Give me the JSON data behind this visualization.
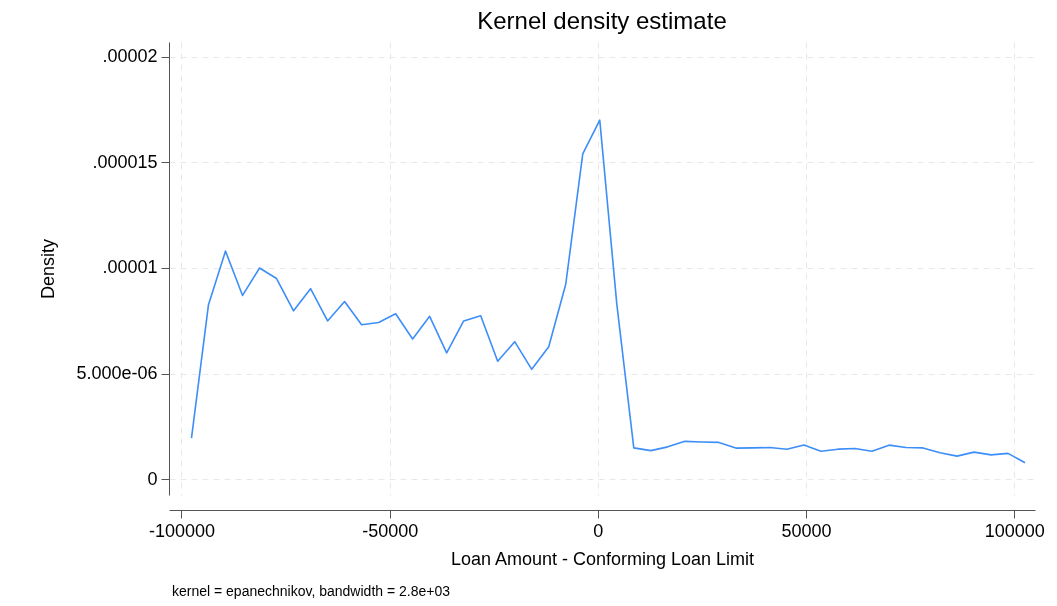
{
  "chart_data": {
    "type": "line",
    "title": "Kernel density estimate",
    "xlabel": "Loan Amount - Conforming Loan Limit",
    "ylabel": "Density",
    "annotations": [
      "kernel = epanechnikov, bandwidth =  2.8e+03"
    ],
    "x": [
      -97600,
      -93514,
      -89428,
      -85342,
      -81256,
      -77170,
      -73084,
      -68998,
      -64912,
      -60826,
      -56740,
      -52654,
      -48568,
      -44482,
      -40396,
      -36310,
      -32224,
      -28138,
      -24052,
      -19966,
      -15880,
      -11794,
      -7708,
      -3622,
      464,
      4550,
      8636,
      12722,
      16808,
      20894,
      24980,
      29066,
      33152,
      37238,
      41324,
      45410,
      49496,
      53582,
      57668,
      61754,
      65840,
      69926,
      74012,
      78098,
      82184,
      86270,
      90356,
      94442,
      98528,
      102614
    ],
    "series": [
      {
        "color": "#3d8ef8",
        "values": [
          1.94e-06,
          8.26e-06,
          1.08e-05,
          8.7e-06,
          1e-05,
          9.5e-06,
          7.97e-06,
          9.02e-06,
          7.49e-06,
          8.41e-06,
          7.31e-06,
          7.42e-06,
          7.83e-06,
          6.64e-06,
          7.71e-06,
          5.98e-06,
          7.49e-06,
          7.74e-06,
          5.58e-06,
          6.51e-06,
          5.2e-06,
          6.27e-06,
          9.23e-06,
          1.54e-05,
          1.7e-05,
          8.3e-06,
          1.48e-06,
          1.35e-06,
          1.53e-06,
          1.79e-06,
          1.76e-06,
          1.74e-06,
          1.47e-06,
          1.48e-06,
          1.5e-06,
          1.42e-06,
          1.62e-06,
          1.32e-06,
          1.42e-06,
          1.45e-06,
          1.32e-06,
          1.61e-06,
          1.5e-06,
          1.48e-06,
          1.25e-06,
          1.09e-06,
          1.28e-06,
          1.15e-06,
          1.22e-06,
          7.8e-07
        ]
      }
    ],
    "xlim": [
      -103000,
      105000
    ],
    "ylim": [
      -7.5e-07,
      2.07e-05
    ],
    "xticks": [
      -100000,
      -50000,
      0,
      50000,
      100000
    ],
    "yticks": [
      0,
      {
        "value": 5e-06,
        "label": "5.000e-06"
      },
      {
        "value": 1e-05,
        "label": ".00001"
      },
      {
        "value": 1.5e-05,
        "label": ".000015"
      },
      {
        "value": 2e-05,
        "label": ".00002"
      }
    ],
    "grid": true
  }
}
